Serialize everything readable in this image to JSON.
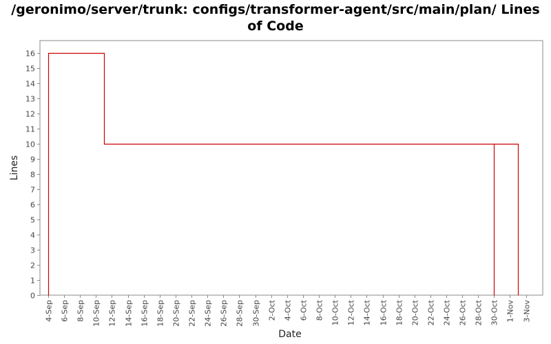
{
  "chart_data": {
    "type": "line",
    "title_line1": "/geronimo/server/trunk: configs/transformer-agent/src/main/plan/ Lines",
    "title_line2": "of Code",
    "xlabel": "Date",
    "ylabel": "Lines",
    "ylim": [
      0,
      16.8
    ],
    "y_ticks": [
      0,
      1,
      2,
      3,
      4,
      5,
      6,
      7,
      8,
      9,
      10,
      11,
      12,
      13,
      14,
      15,
      16
    ],
    "x_ticks": [
      "4-Sep",
      "6-Sep",
      "8-Sep",
      "10-Sep",
      "12-Sep",
      "14-Sep",
      "16-Sep",
      "18-Sep",
      "20-Sep",
      "22-Sep",
      "24-Sep",
      "26-Sep",
      "28-Sep",
      "30-Sep",
      "2-Oct",
      "4-Oct",
      "6-Oct",
      "8-Oct",
      "10-Oct",
      "12-Oct",
      "14-Oct",
      "16-Oct",
      "18-Oct",
      "20-Oct",
      "22-Oct",
      "24-Oct",
      "26-Oct",
      "28-Oct",
      "30-Oct",
      "1-Nov",
      "3-Nov"
    ],
    "series": [
      {
        "step": true,
        "color": "#cc0000",
        "points": [
          {
            "x": "4-Sep",
            "y": 0
          },
          {
            "x": "4-Sep",
            "y": 16
          },
          {
            "x": "11-Sep",
            "y": 16
          },
          {
            "x": "11-Sep",
            "y": 10
          },
          {
            "x": "30-Oct",
            "y": 10
          },
          {
            "x": "30-Oct",
            "y": 0
          },
          {
            "x": "30-Oct",
            "y": 10
          },
          {
            "x": "2-Nov",
            "y": 10
          },
          {
            "x": "2-Nov",
            "y": 0
          }
        ]
      }
    ],
    "grid": false,
    "legend": "none"
  }
}
